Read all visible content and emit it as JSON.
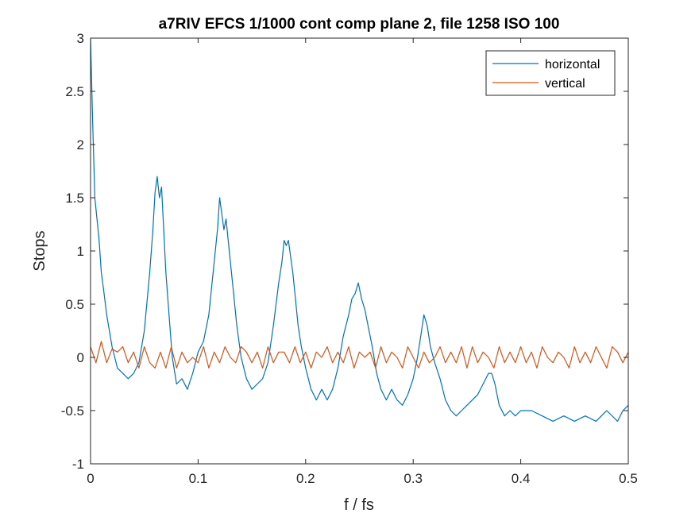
{
  "chart_data": {
    "type": "line",
    "title": "a7RIV EFCS 1/1000 cont comp plane 2, file 1258 ISO 100",
    "xlabel": "f / fs",
    "ylabel": "Stops",
    "xlim": [
      0,
      0.5
    ],
    "ylim": [
      -1,
      3
    ],
    "xticks": [
      0,
      0.1,
      0.2,
      0.3,
      0.4,
      0.5
    ],
    "xtick_labels": [
      "0",
      "0.1",
      "0.2",
      "0.3",
      "0.4",
      "0.5"
    ],
    "yticks": [
      -1,
      -0.5,
      0,
      0.5,
      1,
      1.5,
      2,
      2.5,
      3
    ],
    "ytick_labels": [
      "-1",
      "-0.5",
      "0",
      "0.5",
      "1",
      "1.5",
      "2",
      "2.5",
      "3"
    ],
    "grid": false,
    "legend_position": "top-right",
    "series": [
      {
        "name": "horizontal",
        "color": "#0072BD",
        "x": [
          0,
          0.002,
          0.004,
          0.006,
          0.008,
          0.01,
          0.012,
          0.015,
          0.02,
          0.025,
          0.03,
          0.035,
          0.04,
          0.045,
          0.05,
          0.055,
          0.058,
          0.06,
          0.062,
          0.064,
          0.066,
          0.068,
          0.07,
          0.073,
          0.076,
          0.08,
          0.085,
          0.09,
          0.095,
          0.1,
          0.105,
          0.11,
          0.115,
          0.118,
          0.12,
          0.122,
          0.124,
          0.126,
          0.128,
          0.13,
          0.133,
          0.136,
          0.14,
          0.145,
          0.15,
          0.155,
          0.16,
          0.165,
          0.17,
          0.175,
          0.178,
          0.18,
          0.182,
          0.184,
          0.186,
          0.188,
          0.19,
          0.193,
          0.196,
          0.2,
          0.205,
          0.21,
          0.215,
          0.22,
          0.225,
          0.23,
          0.235,
          0.24,
          0.243,
          0.246,
          0.249,
          0.252,
          0.255,
          0.258,
          0.262,
          0.266,
          0.27,
          0.275,
          0.28,
          0.285,
          0.29,
          0.295,
          0.3,
          0.304,
          0.307,
          0.31,
          0.313,
          0.316,
          0.32,
          0.325,
          0.33,
          0.335,
          0.34,
          0.345,
          0.35,
          0.355,
          0.36,
          0.365,
          0.37,
          0.373,
          0.376,
          0.38,
          0.385,
          0.39,
          0.395,
          0.4,
          0.41,
          0.42,
          0.43,
          0.44,
          0.45,
          0.46,
          0.47,
          0.48,
          0.49,
          0.495,
          0.5
        ],
        "y": [
          3.0,
          2.2,
          1.5,
          1.3,
          1.1,
          0.8,
          0.65,
          0.4,
          0.1,
          -0.1,
          -0.15,
          -0.2,
          -0.15,
          -0.05,
          0.25,
          0.8,
          1.2,
          1.55,
          1.7,
          1.5,
          1.6,
          1.2,
          0.8,
          0.4,
          0.0,
          -0.25,
          -0.2,
          -0.3,
          -0.15,
          0.05,
          0.15,
          0.4,
          0.9,
          1.2,
          1.5,
          1.35,
          1.2,
          1.3,
          1.1,
          0.9,
          0.6,
          0.3,
          0.0,
          -0.2,
          -0.3,
          -0.25,
          -0.2,
          -0.05,
          0.3,
          0.7,
          0.9,
          1.1,
          1.05,
          1.1,
          0.95,
          0.8,
          0.6,
          0.3,
          0.1,
          -0.1,
          -0.3,
          -0.4,
          -0.3,
          -0.4,
          -0.3,
          -0.1,
          0.2,
          0.4,
          0.55,
          0.6,
          0.7,
          0.55,
          0.45,
          0.3,
          0.1,
          -0.15,
          -0.3,
          -0.4,
          -0.3,
          -0.4,
          -0.45,
          -0.35,
          -0.2,
          0.0,
          0.2,
          0.4,
          0.3,
          0.1,
          -0.05,
          -0.2,
          -0.4,
          -0.5,
          -0.55,
          -0.5,
          -0.45,
          -0.4,
          -0.35,
          -0.25,
          -0.15,
          -0.15,
          -0.25,
          -0.45,
          -0.55,
          -0.5,
          -0.55,
          -0.5,
          -0.5,
          -0.55,
          -0.6,
          -0.55,
          -0.6,
          -0.55,
          -0.6,
          -0.5,
          -0.6,
          -0.5,
          -0.45
        ]
      },
      {
        "name": "vertical",
        "color": "#D95319",
        "x": [
          0,
          0.005,
          0.01,
          0.015,
          0.02,
          0.025,
          0.03,
          0.035,
          0.04,
          0.045,
          0.05,
          0.055,
          0.06,
          0.065,
          0.07,
          0.075,
          0.08,
          0.085,
          0.09,
          0.095,
          0.1,
          0.105,
          0.11,
          0.115,
          0.12,
          0.125,
          0.13,
          0.135,
          0.14,
          0.145,
          0.15,
          0.155,
          0.16,
          0.165,
          0.17,
          0.175,
          0.18,
          0.185,
          0.19,
          0.195,
          0.2,
          0.205,
          0.21,
          0.215,
          0.22,
          0.225,
          0.23,
          0.235,
          0.24,
          0.245,
          0.25,
          0.255,
          0.26,
          0.265,
          0.27,
          0.275,
          0.28,
          0.285,
          0.29,
          0.295,
          0.3,
          0.305,
          0.31,
          0.315,
          0.32,
          0.325,
          0.33,
          0.335,
          0.34,
          0.345,
          0.35,
          0.355,
          0.36,
          0.365,
          0.37,
          0.375,
          0.38,
          0.385,
          0.39,
          0.395,
          0.4,
          0.405,
          0.41,
          0.415,
          0.42,
          0.425,
          0.43,
          0.435,
          0.44,
          0.445,
          0.45,
          0.455,
          0.46,
          0.465,
          0.47,
          0.475,
          0.48,
          0.485,
          0.49,
          0.495,
          0.5
        ],
        "y": [
          0.1,
          -0.05,
          0.15,
          -0.05,
          0.08,
          0.05,
          0.1,
          -0.05,
          0.05,
          -0.1,
          0.1,
          -0.05,
          -0.1,
          0.05,
          -0.1,
          0.1,
          -0.1,
          0.05,
          -0.05,
          0.0,
          -0.05,
          0.1,
          -0.1,
          0.05,
          -0.05,
          0.1,
          0.0,
          -0.05,
          0.1,
          0.05,
          -0.05,
          0.05,
          -0.1,
          0.1,
          -0.05,
          0.05,
          0.05,
          -0.05,
          0.1,
          -0.05,
          0.05,
          -0.1,
          0.05,
          0.0,
          0.1,
          -0.05,
          0.05,
          -0.05,
          0.1,
          -0.1,
          0.05,
          0.0,
          0.05,
          -0.1,
          0.1,
          -0.05,
          0.05,
          0.0,
          -0.1,
          0.1,
          0.0,
          -0.1,
          0.05,
          -0.05,
          0.0,
          0.1,
          -0.05,
          0.05,
          -0.05,
          0.1,
          -0.1,
          0.1,
          -0.05,
          0.05,
          0.0,
          -0.1,
          0.1,
          -0.05,
          0.05,
          -0.05,
          0.1,
          -0.05,
          0.05,
          -0.1,
          0.1,
          0.0,
          -0.05,
          0.05,
          0.0,
          -0.1,
          0.1,
          -0.05,
          0.05,
          -0.05,
          0.1,
          0.0,
          -0.1,
          0.1,
          0.05,
          -0.05,
          0.05
        ]
      }
    ]
  }
}
